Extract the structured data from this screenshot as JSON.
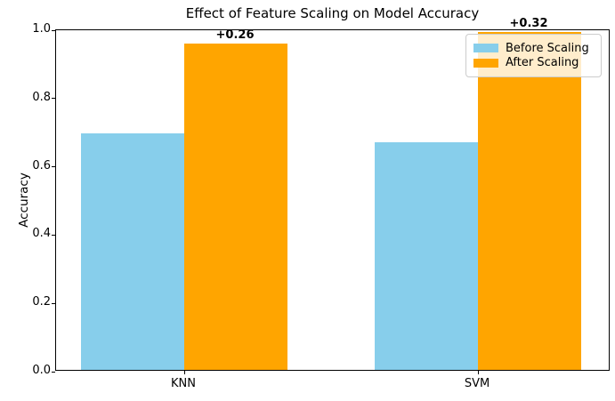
{
  "chart_data": {
    "type": "bar",
    "title": "Effect of Feature Scaling on Model Accuracy",
    "xlabel": "",
    "ylabel": "Accuracy",
    "categories": [
      "KNN",
      "SVM"
    ],
    "series": [
      {
        "name": "Before Scaling",
        "color": "#87CEEB",
        "values": [
          0.694,
          0.667
        ]
      },
      {
        "name": "After Scaling",
        "color": "#FFA500",
        "values": [
          0.956,
          0.989
        ]
      }
    ],
    "annotations": [
      {
        "text": "+0.26",
        "category": "KNN",
        "above_series": "After Scaling"
      },
      {
        "text": "+0.32",
        "category": "SVM",
        "above_series": "After Scaling"
      }
    ],
    "ylim": [
      0.0,
      1.0
    ],
    "yticks": [
      "0.0",
      "0.2",
      "0.4",
      "0.6",
      "0.8",
      "1.0"
    ],
    "grid": false,
    "legend_position": "upper right",
    "bar_width_data_units": 0.35
  }
}
